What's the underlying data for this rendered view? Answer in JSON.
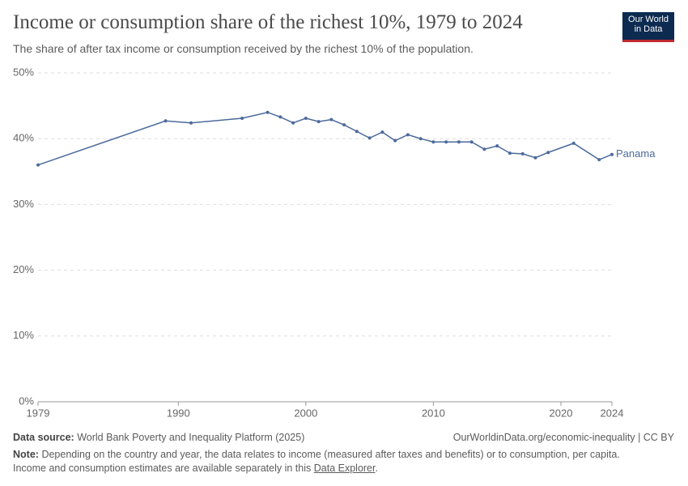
{
  "chart_data": {
    "type": "line",
    "title": "Income or consumption share of the richest 10%, 1979 to 2024",
    "subtitle": "The share of after tax income or consumption received by the richest 10% of the population.",
    "x": [
      1979,
      1989,
      1991,
      1995,
      1997,
      1998,
      1999,
      2000,
      2001,
      2002,
      2003,
      2004,
      2005,
      2006,
      2007,
      2008,
      2009,
      2010,
      2011,
      2012,
      2013,
      2014,
      2015,
      2016,
      2017,
      2018,
      2019,
      2021,
      2023,
      2024
    ],
    "series": [
      {
        "name": "Panama",
        "color": "#4c6a9c",
        "values": [
          36.0,
          42.7,
          42.4,
          43.1,
          44.0,
          43.3,
          42.4,
          43.1,
          42.6,
          42.9,
          42.1,
          41.1,
          40.1,
          41.0,
          39.7,
          40.6,
          40.0,
          39.5,
          39.5,
          39.5,
          39.5,
          38.4,
          38.9,
          37.8,
          37.7,
          37.1,
          37.9,
          39.3,
          36.8,
          37.6
        ]
      }
    ],
    "xlim": [
      1979,
      2024
    ],
    "xticks": [
      1979,
      1990,
      2000,
      2010,
      2020,
      2024
    ],
    "ylim": [
      0,
      50
    ],
    "yticks": [
      {
        "value": 0,
        "label": "0%"
      },
      {
        "value": 10,
        "label": "10%"
      },
      {
        "value": 20,
        "label": "20%"
      },
      {
        "value": 30,
        "label": "30%"
      },
      {
        "value": 40,
        "label": "40%"
      },
      {
        "value": 50,
        "label": "50%"
      }
    ],
    "grid": true
  },
  "logo": {
    "line1": "Our World",
    "line2": "in Data"
  },
  "footer": {
    "source_label": "Data source:",
    "source": "World Bank Poverty and Inequality Platform (2025)",
    "url": "OurWorldinData.org/economic-inequality | CC BY",
    "note_label": "Note:",
    "note_line1": "Depending on the country and year, the data relates to income (measured after taxes and benefits) or to consumption, per capita.",
    "note_line2": "Income and consumption estimates are available separately in this",
    "note_link": "Data Explorer",
    "note_end": "."
  }
}
